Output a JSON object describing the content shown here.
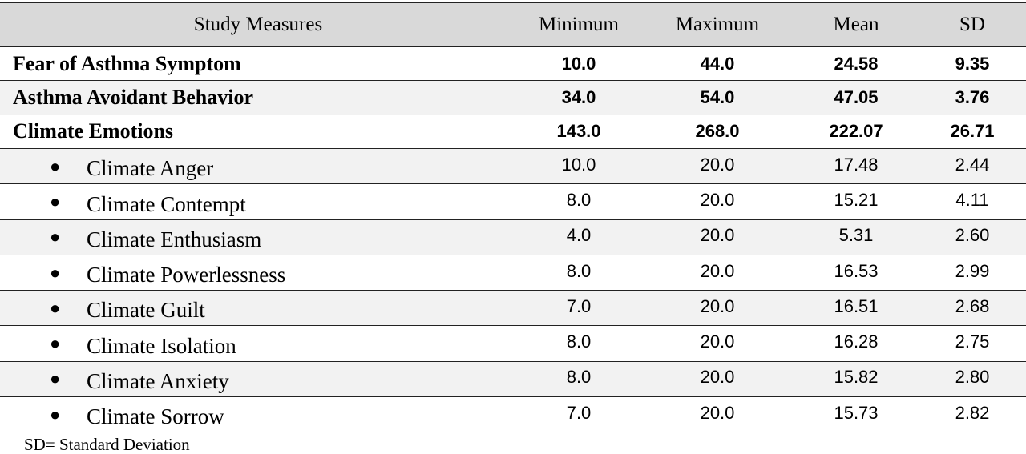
{
  "table": {
    "header": [
      "Study Measures",
      "Minimum",
      "Maximum",
      "Mean",
      "SD"
    ],
    "rows": [
      {
        "measure": "Fear of Asthma Symptom",
        "minimum": "10.0",
        "maximum": "44.0",
        "mean": "24.58",
        "sd": "9.35"
      },
      {
        "measure": "Asthma Avoidant Behavior",
        "minimum": "34.0",
        "maximum": "54.0",
        "mean": "47.05",
        "sd": "3.76"
      },
      {
        "measure": "Climate Emotions",
        "minimum": "143.0",
        "maximum": "268.0",
        "mean": "222.07",
        "sd": "26.71",
        "subscales": [
          {
            "measure": "Climate Anger",
            "minimum": "10.0",
            "maximum": "20.0",
            "mean": "17.48",
            "sd": "2.44"
          },
          {
            "measure": "Climate Contempt",
            "minimum": "8.0",
            "maximum": "20.0",
            "mean": "15.21",
            "sd": "4.11"
          },
          {
            "measure": "Climate Enthusiasm",
            "minimum": "4.0",
            "maximum": "20.0",
            "mean": "5.31",
            "sd": "2.60"
          },
          {
            "measure": "Climate Powerlessness",
            "minimum": "8.0",
            "maximum": "20.0",
            "mean": "16.53",
            "sd": "2.99"
          },
          {
            "measure": "Climate Guilt",
            "minimum": "7.0",
            "maximum": "20.0",
            "mean": "16.51",
            "sd": "2.68"
          },
          {
            "measure": "Climate Isolation",
            "minimum": "8.0",
            "maximum": "20.0",
            "mean": "16.28",
            "sd": "2.75"
          },
          {
            "measure": "Climate Anxiety",
            "minimum": "8.0",
            "maximum": "20.0",
            "mean": "15.82",
            "sd": "2.80"
          },
          {
            "measure": "Climate Sorrow",
            "minimum": "7.0",
            "maximum": "20.0",
            "mean": "15.73",
            "sd": "2.82"
          }
        ]
      }
    ],
    "footnote": "SD= Standard Deviation"
  }
}
